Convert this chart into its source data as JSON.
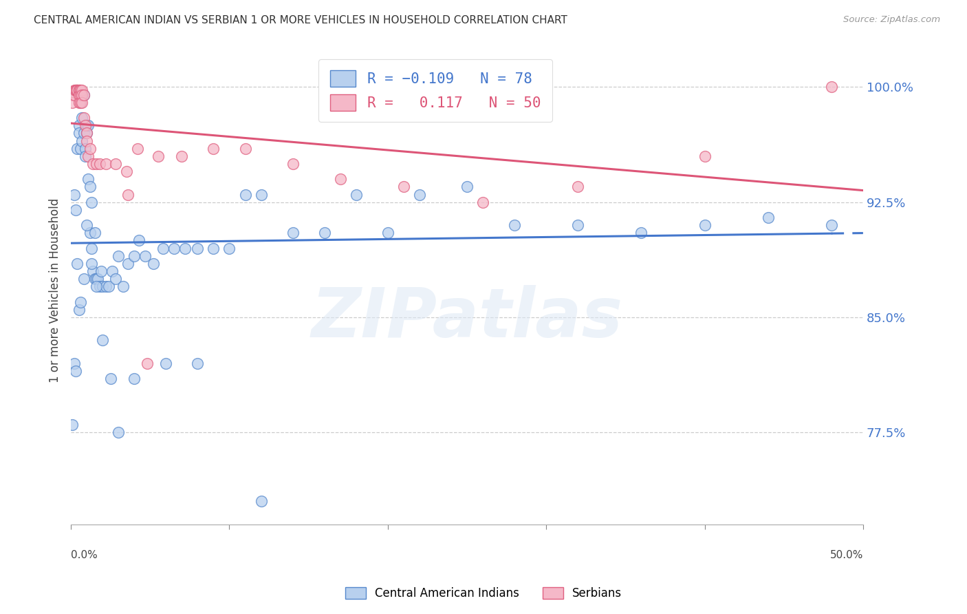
{
  "title": "CENTRAL AMERICAN INDIAN VS SERBIAN 1 OR MORE VEHICLES IN HOUSEHOLD CORRELATION CHART",
  "source_text": "Source: ZipAtlas.com",
  "ylabel": "1 or more Vehicles in Household",
  "xmin": 0.0,
  "xmax": 0.5,
  "ymin": 0.715,
  "ymax": 1.02,
  "yticks": [
    0.775,
    0.85,
    0.925,
    1.0
  ],
  "ytick_labels": [
    "77.5%",
    "85.0%",
    "92.5%",
    "100.0%"
  ],
  "blue_color": "#b8d0ee",
  "pink_color": "#f5b8c8",
  "blue_edge_color": "#5588cc",
  "pink_edge_color": "#e06080",
  "blue_line_color": "#4477cc",
  "pink_line_color": "#dd5577",
  "watermark_text": "ZIPatlas",
  "blue_scatter_x": [
    0.001,
    0.002,
    0.003,
    0.004,
    0.004,
    0.005,
    0.005,
    0.006,
    0.006,
    0.007,
    0.007,
    0.007,
    0.008,
    0.008,
    0.009,
    0.009,
    0.01,
    0.01,
    0.011,
    0.011,
    0.012,
    0.012,
    0.013,
    0.013,
    0.014,
    0.015,
    0.015,
    0.016,
    0.017,
    0.018,
    0.019,
    0.02,
    0.022,
    0.024,
    0.026,
    0.028,
    0.03,
    0.033,
    0.036,
    0.04,
    0.043,
    0.047,
    0.052,
    0.058,
    0.065,
    0.072,
    0.08,
    0.09,
    0.1,
    0.11,
    0.12,
    0.14,
    0.16,
    0.18,
    0.2,
    0.22,
    0.25,
    0.28,
    0.32,
    0.36,
    0.4,
    0.44,
    0.48,
    0.002,
    0.003,
    0.005,
    0.006,
    0.008,
    0.01,
    0.013,
    0.016,
    0.02,
    0.025,
    0.03,
    0.04,
    0.06,
    0.08,
    0.12
  ],
  "blue_scatter_y": [
    0.78,
    0.93,
    0.92,
    0.96,
    0.885,
    0.975,
    0.97,
    0.99,
    0.96,
    0.995,
    0.98,
    0.965,
    0.995,
    0.97,
    0.96,
    0.955,
    0.975,
    0.97,
    0.975,
    0.94,
    0.935,
    0.905,
    0.925,
    0.895,
    0.88,
    0.905,
    0.875,
    0.875,
    0.875,
    0.87,
    0.88,
    0.87,
    0.87,
    0.87,
    0.88,
    0.875,
    0.89,
    0.87,
    0.885,
    0.89,
    0.9,
    0.89,
    0.885,
    0.895,
    0.895,
    0.895,
    0.895,
    0.895,
    0.895,
    0.93,
    0.93,
    0.905,
    0.905,
    0.93,
    0.905,
    0.93,
    0.935,
    0.91,
    0.91,
    0.905,
    0.91,
    0.915,
    0.91,
    0.82,
    0.815,
    0.855,
    0.86,
    0.875,
    0.91,
    0.885,
    0.87,
    0.835,
    0.81,
    0.775,
    0.81,
    0.82,
    0.82,
    0.73
  ],
  "pink_scatter_x": [
    0.001,
    0.001,
    0.002,
    0.002,
    0.003,
    0.003,
    0.003,
    0.004,
    0.004,
    0.004,
    0.004,
    0.005,
    0.005,
    0.005,
    0.005,
    0.005,
    0.006,
    0.006,
    0.006,
    0.006,
    0.007,
    0.007,
    0.007,
    0.008,
    0.008,
    0.009,
    0.01,
    0.01,
    0.011,
    0.012,
    0.014,
    0.016,
    0.018,
    0.022,
    0.028,
    0.035,
    0.042,
    0.055,
    0.07,
    0.09,
    0.11,
    0.14,
    0.17,
    0.21,
    0.26,
    0.32,
    0.4,
    0.48,
    0.048,
    0.036
  ],
  "pink_scatter_y": [
    0.995,
    0.99,
    0.998,
    0.995,
    0.998,
    0.998,
    0.998,
    0.998,
    0.998,
    0.998,
    0.998,
    0.998,
    0.998,
    0.998,
    0.995,
    0.99,
    0.998,
    0.998,
    0.995,
    0.99,
    0.998,
    0.995,
    0.99,
    0.995,
    0.98,
    0.975,
    0.97,
    0.965,
    0.955,
    0.96,
    0.95,
    0.95,
    0.95,
    0.95,
    0.95,
    0.945,
    0.96,
    0.955,
    0.955,
    0.96,
    0.96,
    0.95,
    0.94,
    0.935,
    0.925,
    0.935,
    0.955,
    1.0,
    0.82,
    0.93
  ]
}
